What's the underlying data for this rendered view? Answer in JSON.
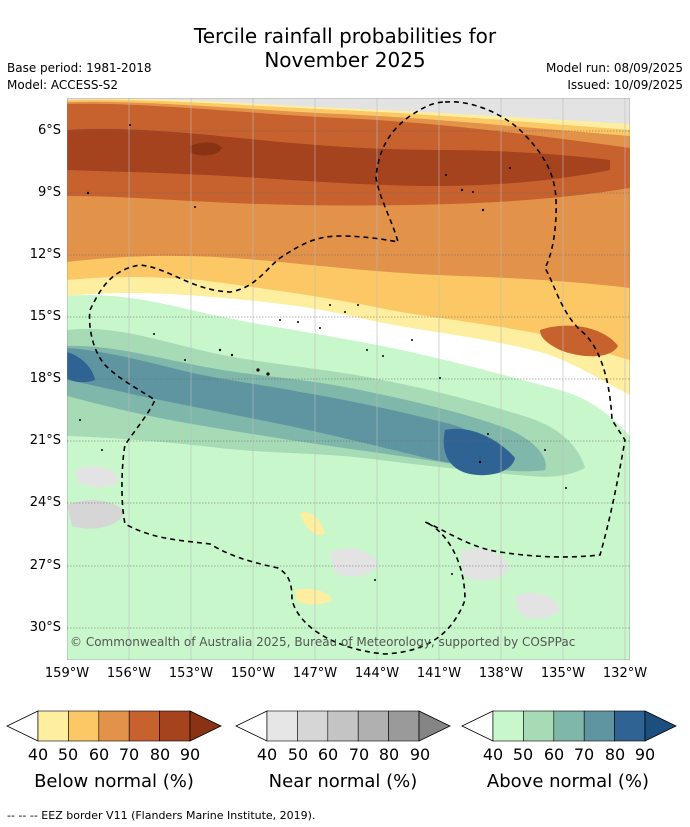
{
  "title_line1": "Tercile rainfall probabilities for",
  "title_line2": "November 2025",
  "base_period": "Base period: 1981-2018",
  "model": "Model: ACCESS-S2",
  "model_run": "Model run: 08/09/2025",
  "issued": "Issued: 10/09/2025",
  "copyright": "© Commonwealth of Australia 2025, Bureau of Meteorology, supported by COSPPac",
  "lat_labels": [
    "6°S",
    "9°S",
    "12°S",
    "15°S",
    "18°S",
    "21°S",
    "24°S",
    "27°S",
    "30°S"
  ],
  "lon_labels": [
    "159°W",
    "156°W",
    "153°W",
    "150°W",
    "147°W",
    "144°W",
    "141°W",
    "138°W",
    "135°W",
    "132°W"
  ],
  "legend": {
    "tick_values": [
      "40",
      "50",
      "60",
      "70",
      "80",
      "90"
    ],
    "below": {
      "title": "Below normal (%)",
      "colors": [
        "#fdeea0",
        "#fcc865",
        "#e3924a",
        "#c7612e",
        "#a5431f",
        "#8a3214"
      ]
    },
    "near": {
      "title": "Near normal (%)",
      "colors": [
        "#e6e6e6",
        "#d6d6d6",
        "#c4c4c4",
        "#b0b0b0",
        "#9a9a9a",
        "#858585"
      ]
    },
    "above": {
      "title": "Above normal (%)",
      "colors": [
        "#c8f7cc",
        "#a6dbb6",
        "#7fb7aa",
        "#5e95a0",
        "#2e6394",
        "#1d4f7e"
      ]
    }
  },
  "footnote": "--  --  -- EEZ border V11 (Flanders Marine Institute, 2019)."
}
